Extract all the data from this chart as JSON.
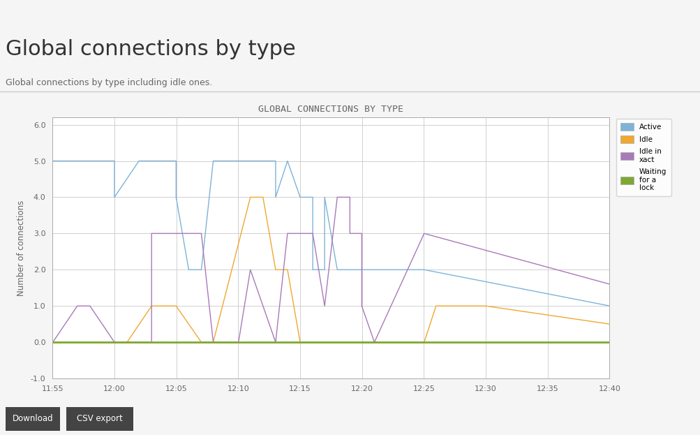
{
  "title": "GLOBAL CONNECTIONS BY TYPE",
  "header_title": "Global connections by type",
  "header_subtitle": "Global connections by type including idle ones.",
  "ylabel": "Number of connections",
  "outer_bg": "#eeeeee",
  "card_bg": "#f5f5f5",
  "plot_bg": "#ffffff",
  "ylim": [
    -1.0,
    6.2
  ],
  "yticks": [
    -1.0,
    0.0,
    1.0,
    2.0,
    3.0,
    4.0,
    5.0,
    6.0
  ],
  "xtick_labels": [
    "11:55",
    "12:00",
    "12:05",
    "12:10",
    "12:15",
    "12:20",
    "12:25",
    "12:30",
    "12:35",
    "12:40"
  ],
  "xlim_min": 11.9167,
  "xlim_max": 12.6667,
  "series_Active": {
    "color": "#7eb3d8",
    "x": [
      11.917,
      11.958,
      12.0,
      12.0,
      12.033,
      12.05,
      12.067,
      12.083,
      12.083,
      12.1,
      12.117,
      12.133,
      12.15,
      12.167,
      12.183,
      12.2,
      12.217,
      12.217,
      12.233,
      12.233,
      12.25,
      12.267,
      12.267,
      12.283,
      12.283,
      12.3,
      12.417,
      12.667
    ],
    "y": [
      5,
      5,
      5,
      4,
      5,
      5,
      5,
      5,
      4,
      2,
      2,
      5,
      5,
      5,
      5,
      5,
      5,
      4,
      5,
      5,
      4,
      4,
      2,
      2,
      4,
      2,
      2,
      1
    ]
  },
  "series_Idle": {
    "color": "#f0a830",
    "x": [
      11.917,
      12.017,
      12.05,
      12.083,
      12.117,
      12.133,
      12.183,
      12.2,
      12.217,
      12.233,
      12.25,
      12.267,
      12.417,
      12.433,
      12.5,
      12.667
    ],
    "y": [
      0,
      0,
      1,
      1,
      0,
      0,
      4,
      4,
      2,
      2,
      0,
      0,
      0,
      1,
      1,
      0.5
    ]
  },
  "series_IdleXact": {
    "color": "#a87ab8",
    "x": [
      11.917,
      11.95,
      11.967,
      12.0,
      12.05,
      12.05,
      12.067,
      12.083,
      12.117,
      12.133,
      12.167,
      12.183,
      12.183,
      12.2,
      12.2,
      12.217,
      12.233,
      12.25,
      12.267,
      12.283,
      12.3,
      12.317,
      12.317,
      12.333,
      12.333,
      12.35,
      12.417,
      12.667
    ],
    "y": [
      0,
      1,
      1,
      0,
      0,
      3,
      3,
      3,
      3,
      0,
      0,
      2,
      2,
      1,
      1,
      0,
      3,
      3,
      3,
      1,
      4,
      4,
      3,
      3,
      1,
      0,
      3,
      1.6
    ]
  },
  "series_Waiting": {
    "color": "#7ea832",
    "x": [
      11.917,
      12.667
    ],
    "y": [
      0,
      0
    ]
  },
  "legend_colors": [
    "#7eb3d8",
    "#f0a830",
    "#a87ab8",
    "#7ea832"
  ],
  "legend_labels": [
    "Active",
    "Idle",
    "Idle in\nxact",
    "Waiting\nfor a\nlock"
  ]
}
